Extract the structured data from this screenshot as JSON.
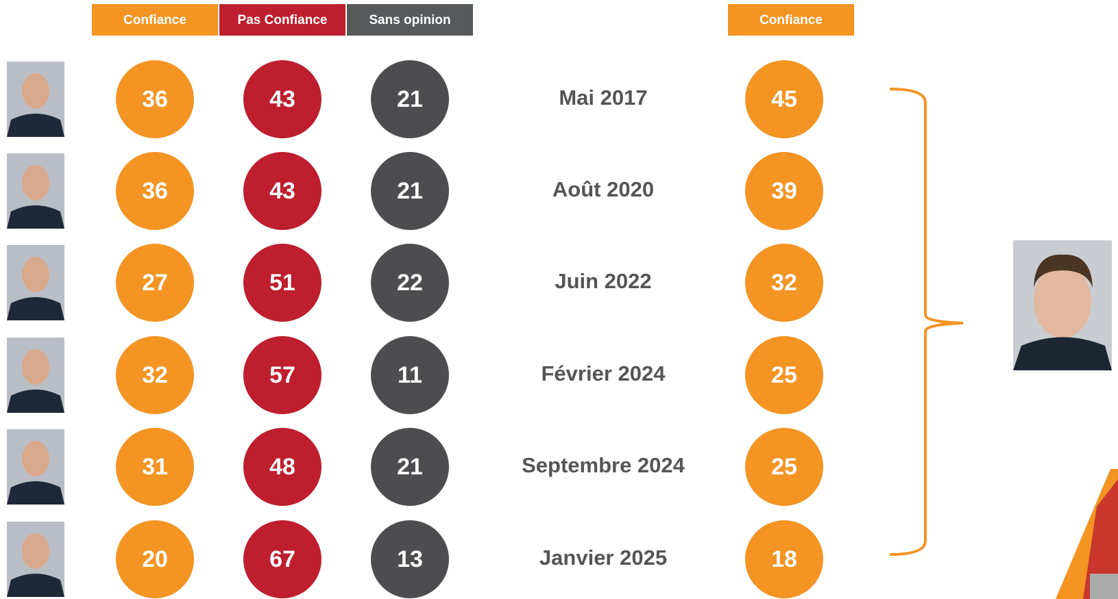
{
  "table": {
    "headers": [
      "Confiance",
      "Pas Confiance",
      "Sans opinion"
    ],
    "right_header": "Confiance",
    "rows": [
      {
        "confiance": 36,
        "pas_confiance": 43,
        "sans_opinion": 21,
        "date": "Mai 2017",
        "president_confiance": 45
      },
      {
        "confiance": 36,
        "pas_confiance": 43,
        "sans_opinion": 21,
        "date": "Août 2020",
        "president_confiance": 39
      },
      {
        "confiance": 27,
        "pas_confiance": 51,
        "sans_opinion": 22,
        "date": "Juin 2022",
        "president_confiance": 32
      },
      {
        "confiance": 32,
        "pas_confiance": 57,
        "sans_opinion": 11,
        "date": "Février 2024",
        "president_confiance": 25
      },
      {
        "confiance": 31,
        "pas_confiance": 48,
        "sans_opinion": 21,
        "date": "Septembre  2024",
        "president_confiance": 25
      },
      {
        "confiance": 20,
        "pas_confiance": 67,
        "sans_opinion": 13,
        "date": "Janvier 2025",
        "president_confiance": 18
      }
    ]
  }
}
